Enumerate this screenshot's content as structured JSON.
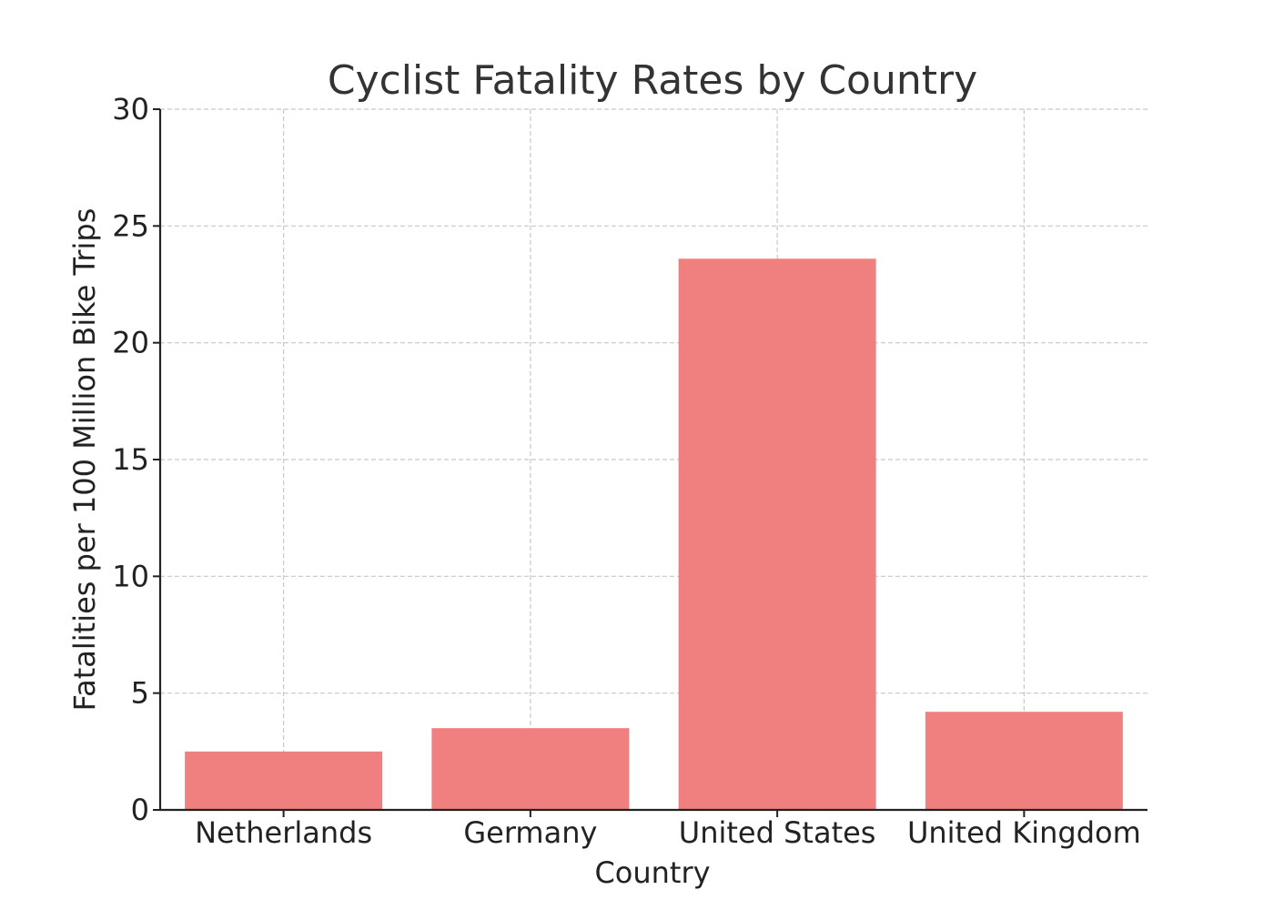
{
  "chart_data": {
    "type": "bar",
    "title": "Cyclist Fatality Rates by Country",
    "xlabel": "Country",
    "ylabel": "Fatalities per 100 Million Bike Trips",
    "categories": [
      "Netherlands",
      "Germany",
      "United States",
      "United Kingdom"
    ],
    "values": [
      2.5,
      3.5,
      23.6,
      4.2
    ],
    "ylim": [
      0,
      30
    ],
    "yticks": [
      0,
      5,
      10,
      15,
      20,
      25,
      30
    ],
    "grid": true,
    "bar_color": "#f08080"
  }
}
